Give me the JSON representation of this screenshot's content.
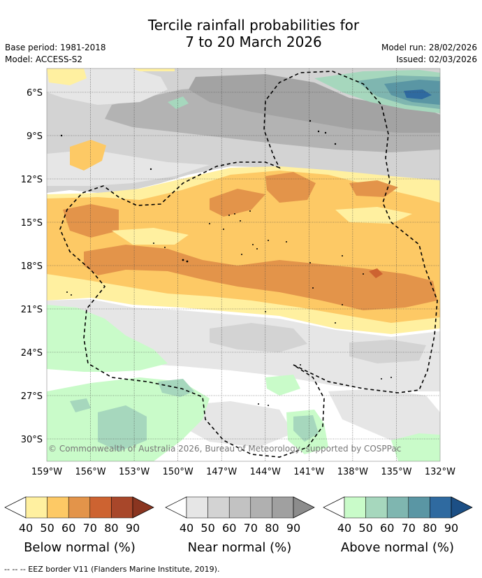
{
  "title": {
    "line1": "Tercile rainfall probabilities for",
    "line2": "7 to 20 March 2026"
  },
  "meta": {
    "base_period": "Base period: 1981-2018",
    "model": "Model: ACCESS-S2",
    "model_run": "Model run: 28/02/2026",
    "issued": "Issued: 02/03/2026"
  },
  "map": {
    "lat_ticks": [
      "6°S",
      "9°S",
      "12°S",
      "15°S",
      "18°S",
      "21°S",
      "24°S",
      "27°S",
      "30°S"
    ],
    "lon_ticks": [
      "159°W",
      "156°W",
      "153°W",
      "150°W",
      "147°W",
      "144°W",
      "141°W",
      "138°W",
      "135°W",
      "132°W"
    ],
    "copyright": "© Commonwealth of Australia 2026, Bureau of Meteorology, supported by COSPPac"
  },
  "legends": [
    {
      "label": "Below normal (%)",
      "ticks": [
        "40",
        "50",
        "60",
        "70",
        "80",
        "90"
      ],
      "colors": [
        "#fff0a0",
        "#fdc965",
        "#e3944a",
        "#cd6331",
        "#a8472a",
        "#8a3520"
      ]
    },
    {
      "label": "Near normal (%)",
      "ticks": [
        "40",
        "50",
        "60",
        "70",
        "80",
        "90"
      ],
      "colors": [
        "#e6e6e6",
        "#d3d3d3",
        "#c2c2c2",
        "#b0b0b0",
        "#a0a0a0",
        "#8c8c8c"
      ]
    },
    {
      "label": "Above normal (%)",
      "ticks": [
        "40",
        "50",
        "60",
        "70",
        "80",
        "90"
      ],
      "colors": [
        "#c9fbc9",
        "#a6d7bd",
        "#7fb6b0",
        "#5a96a4",
        "#2f6aa0",
        "#1c4f85"
      ]
    }
  ],
  "eez_note": "--  --  -- EEZ border V11 (Flanders Marine Institute, 2019)."
}
